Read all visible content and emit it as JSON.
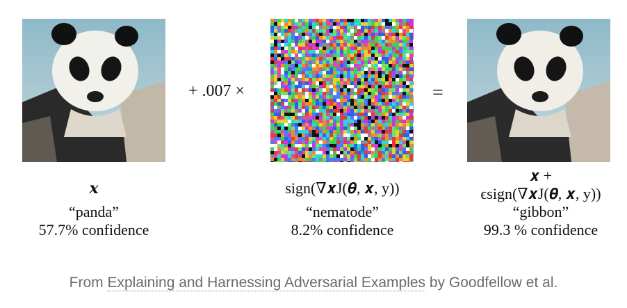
{
  "figure": {
    "operator_plus": "+ .007 ×",
    "operator_equals": "=",
    "columns": [
      {
        "math": "𝒙",
        "label": "“panda”",
        "confidence": "57.7% confidence"
      },
      {
        "math": "sign(∇𝒙J(𝜽, 𝒙, y))",
        "label": "“nematode”",
        "confidence": "8.2% confidence"
      },
      {
        "math_line1": "𝒙 +",
        "math_line2": "ϵsign(∇𝒙J(𝜽, 𝒙, y))",
        "label": "“gibbon”",
        "confidence": "99.3 % confidence"
      }
    ]
  },
  "caption": {
    "prefix": "From ",
    "link_text": "Explaining and Harnessing Adversarial Examples",
    "suffix": " by Goodfellow et al."
  }
}
